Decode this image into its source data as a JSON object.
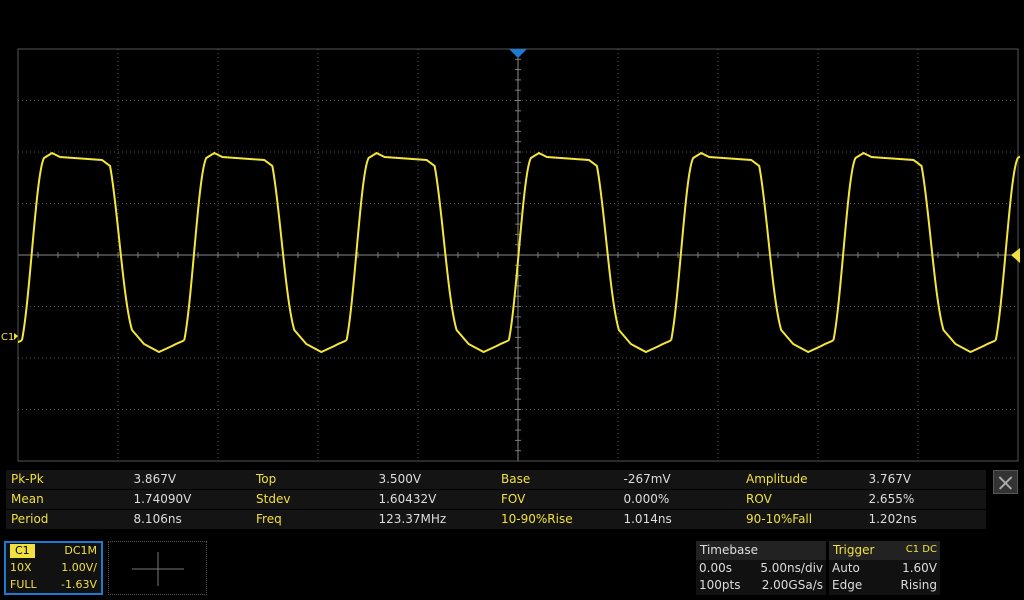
{
  "trace_label": "C1",
  "measurements": [
    [
      [
        "Pk-Pk",
        "3.867V"
      ],
      [
        "Top",
        "3.500V"
      ],
      [
        "Base",
        "-267mV"
      ],
      [
        "Amplitude",
        "3.767V"
      ]
    ],
    [
      [
        "Mean",
        "1.74090V"
      ],
      [
        "Stdev",
        "1.60432V"
      ],
      [
        "FOV",
        "0.000%"
      ],
      [
        "ROV",
        "2.655%"
      ]
    ],
    [
      [
        "Period",
        "8.106ns"
      ],
      [
        "Freq",
        "123.37MHz"
      ],
      [
        "10-90%Rise",
        "1.014ns"
      ],
      [
        "90-10%Fall",
        "1.202ns"
      ]
    ]
  ],
  "channel": {
    "name": "C1",
    "coupling": "DC1M",
    "probe": "10X",
    "scale": "1.00V/",
    "bandwidth": "FULL",
    "offset": "-1.63V"
  },
  "timebase": {
    "title": "Timebase",
    "delay": "0.00s",
    "scale": "5.00ns/div",
    "points": "100pts",
    "rate": "2.00GSa/s"
  },
  "trigger": {
    "title": "Trigger",
    "source": "C1 DC",
    "mode": "Auto",
    "level": "1.60V",
    "type": "Edge",
    "slope": "Rising"
  }
}
